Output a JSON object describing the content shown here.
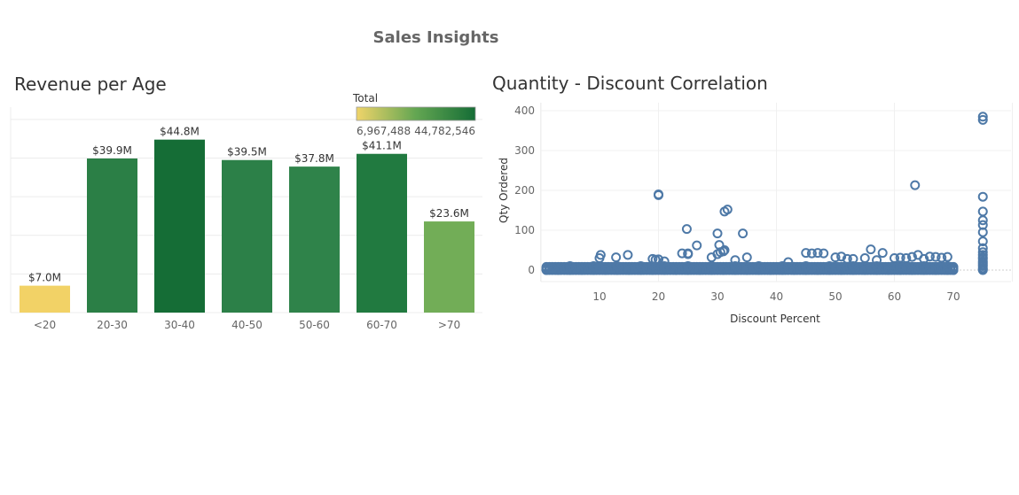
{
  "dashboard": {
    "title": "Sales Insights"
  },
  "revenue": {
    "title": "Revenue per Age",
    "legend": {
      "title": "Total",
      "min_label": "6,967,488",
      "max_label": "44,782,546",
      "min_color": "#f0d46a",
      "mid_color": "#63a652",
      "max_color": "#156d36"
    }
  },
  "scatter": {
    "title": "Quantity - Discount Correlation",
    "point_color": "#4e79a7"
  },
  "chart_data": [
    {
      "type": "bar",
      "title": "Revenue per Age",
      "categories": [
        "<20",
        "20-30",
        "30-40",
        "40-50",
        "50-60",
        "60-70",
        ">70"
      ],
      "values": [
        6967488,
        39900000,
        44782546,
        39500000,
        37800000,
        41100000,
        23600000
      ],
      "data_labels": [
        "$7.0M",
        "$39.9M",
        "$44.8M",
        "$39.5M",
        "$37.8M",
        "$41.1M",
        "$23.6M"
      ],
      "bar_colors": [
        "#f2d266",
        "#2b7f46",
        "#156d36",
        "#2c8048",
        "#2f834a",
        "#217a40",
        "#72ad57"
      ],
      "ylim": [
        0,
        50000000
      ],
      "xlabel": "",
      "ylabel": "",
      "grid": true
    },
    {
      "type": "scatter",
      "title": "Quantity - Discount Correlation",
      "xlabel": "Discount Percent",
      "ylabel": "Qty Ordered",
      "xlim": [
        0,
        80
      ],
      "ylim": [
        -25,
        420
      ],
      "xticks": [
        10,
        20,
        30,
        40,
        50,
        60,
        70
      ],
      "yticks": [
        0,
        100,
        200,
        300,
        400
      ],
      "grid": true,
      "x": [
        1,
        3,
        5,
        7,
        9,
        11,
        13,
        15,
        17,
        19,
        21,
        23,
        25,
        27,
        29,
        31,
        33,
        35,
        37,
        39,
        41,
        43,
        45,
        47,
        49,
        51,
        53,
        55,
        57,
        59,
        61,
        63,
        65,
        67,
        69,
        70,
        2,
        4,
        6,
        8,
        10,
        12,
        14,
        16,
        18,
        20,
        22,
        24,
        26,
        28,
        30,
        32,
        34,
        36,
        38,
        40,
        42,
        44,
        46,
        48,
        50,
        52,
        54,
        56,
        58,
        60,
        62,
        64,
        66,
        68,
        5,
        9,
        13,
        17,
        21,
        25,
        29,
        33,
        37,
        41,
        45,
        49,
        53,
        57,
        61,
        65,
        69,
        10,
        10.2,
        12.8,
        14.8,
        19,
        19.5,
        20,
        21,
        24,
        25,
        29,
        30,
        30.5,
        33,
        35,
        42,
        45,
        46,
        47,
        48,
        50,
        51,
        52,
        53,
        55,
        56,
        57,
        58,
        60,
        61,
        62,
        63,
        64,
        65,
        66,
        67,
        68,
        69,
        20,
        20,
        24.8,
        26.5,
        30,
        31.2,
        34.3,
        25,
        30.3,
        31,
        31.2,
        31.7,
        63.5,
        75,
        75,
        75,
        75,
        75,
        75,
        75,
        75,
        75,
        75,
        75,
        75,
        75,
        75,
        75,
        75,
        75,
        75,
        75,
        75
      ],
      "y": [
        0,
        0,
        0,
        0,
        0,
        0,
        0,
        0,
        0,
        0,
        0,
        0,
        0,
        0,
        0,
        0,
        0,
        0,
        0,
        0,
        0,
        0,
        0,
        0,
        0,
        0,
        0,
        0,
        0,
        0,
        0,
        0,
        0,
        0,
        0,
        0,
        5,
        5,
        5,
        5,
        5,
        5,
        5,
        5,
        5,
        5,
        5,
        5,
        5,
        5,
        5,
        5,
        5,
        5,
        5,
        5,
        5,
        5,
        5,
        5,
        5,
        5,
        5,
        5,
        5,
        5,
        5,
        5,
        5,
        5,
        10,
        10,
        10,
        10,
        10,
        10,
        10,
        10,
        10,
        10,
        10,
        10,
        10,
        10,
        10,
        10,
        10,
        30,
        38,
        32,
        38,
        28,
        26,
        27,
        22,
        42,
        40,
        32,
        40,
        45,
        25,
        32,
        20,
        43,
        42,
        43,
        42,
        32,
        34,
        28,
        28,
        30,
        52,
        25,
        43,
        30,
        31,
        30,
        33,
        38,
        28,
        34,
        33,
        31,
        33,
        188,
        190,
        103,
        62,
        92,
        50,
        92,
        42,
        63,
        47,
        147,
        152,
        213,
        385,
        377,
        184,
        147,
        125,
        113,
        95,
        72,
        55,
        45,
        38,
        32,
        28,
        22,
        18,
        14,
        10,
        5,
        2,
        0
      ]
    }
  ]
}
